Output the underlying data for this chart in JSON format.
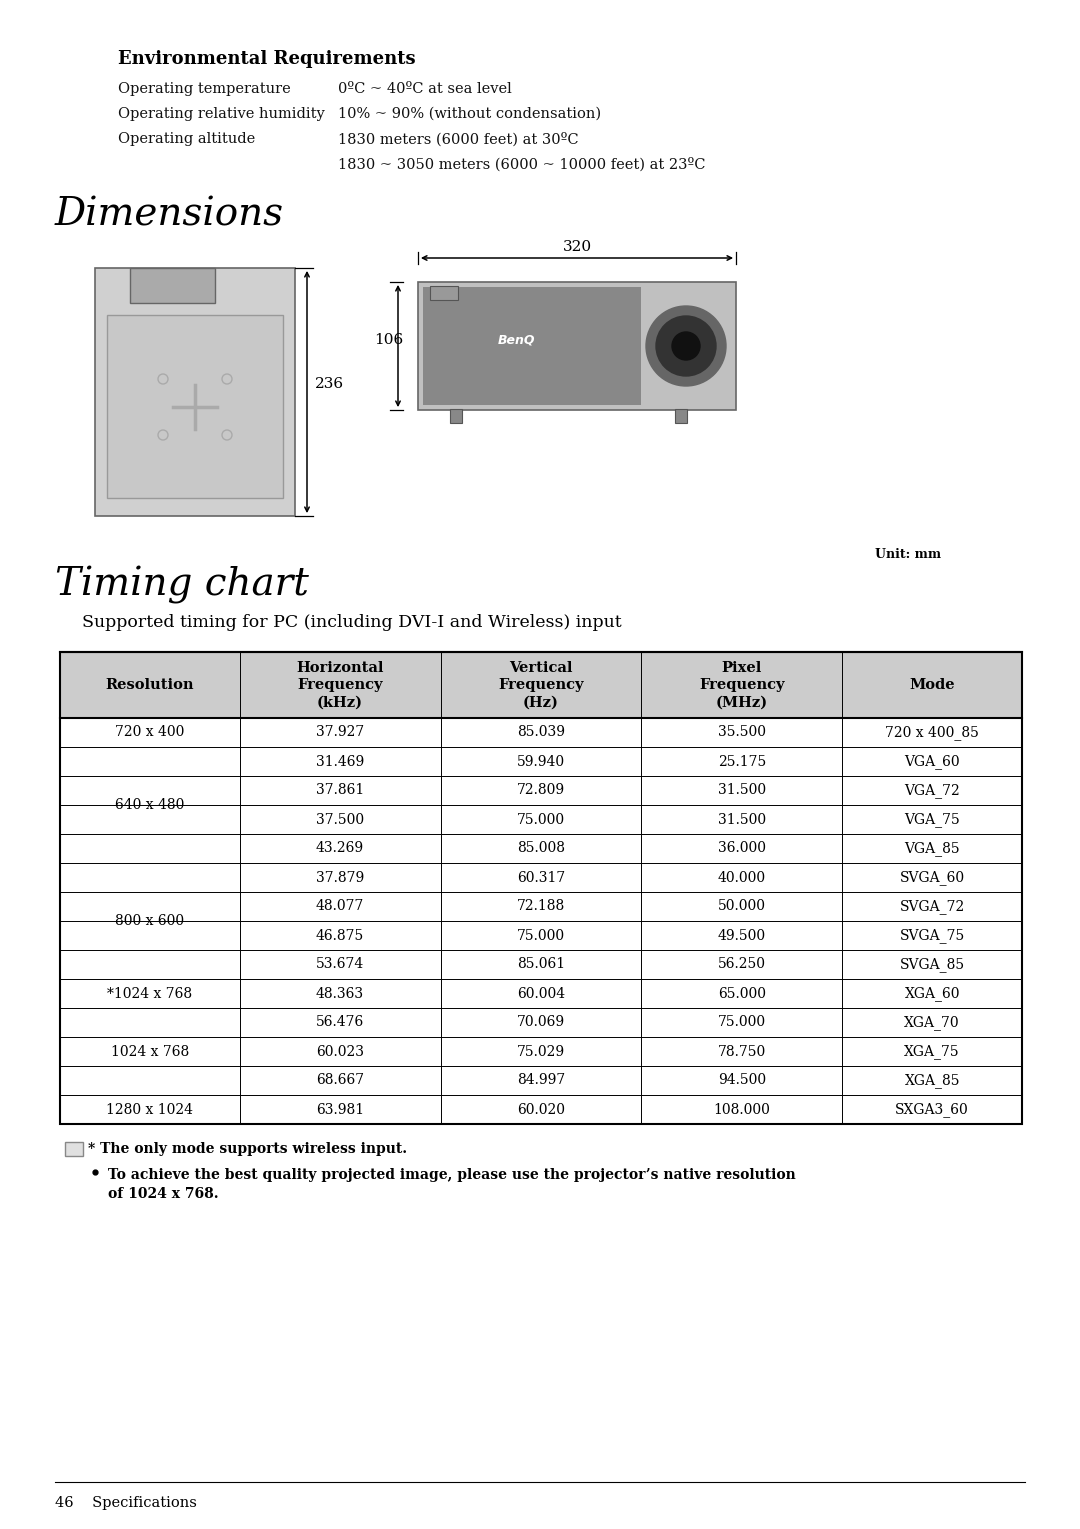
{
  "bg_color": "#ffffff",
  "env_title": "Environmental Requirements",
  "env_rows": [
    [
      "Operating temperature",
      "0ºC ~ 40ºC at sea level"
    ],
    [
      "Operating relative humidity",
      "10% ~ 90% (without condensation)"
    ],
    [
      "Operating altitude",
      "1830 meters (6000 feet) at 30ºC"
    ],
    [
      "",
      "1830 ~ 3050 meters (6000 ~ 10000 feet) at 23ºC"
    ]
  ],
  "dimensions_title": "Dimensions",
  "unit_label": "Unit: mm",
  "timing_title": "Timing chart",
  "timing_subtitle": "Supported timing for PC (including DVI-I and Wireless) input",
  "table_headers": [
    "Resolution",
    "Horizontal\nFrequency\n(kHz)",
    "Vertical\nFrequency\n(Hz)",
    "Pixel\nFrequency\n(MHz)",
    "Mode"
  ],
  "table_data": [
    [
      "720 x 400",
      "37.927",
      "85.039",
      "35.500",
      "720 x 400_85"
    ],
    [
      "",
      "31.469",
      "59.940",
      "25.175",
      "VGA_60"
    ],
    [
      "640 x 480",
      "37.861",
      "72.809",
      "31.500",
      "VGA_72"
    ],
    [
      "",
      "37.500",
      "75.000",
      "31.500",
      "VGA_75"
    ],
    [
      "",
      "43.269",
      "85.008",
      "36.000",
      "VGA_85"
    ],
    [
      "",
      "37.879",
      "60.317",
      "40.000",
      "SVGA_60"
    ],
    [
      "800 x 600",
      "48.077",
      "72.188",
      "50.000",
      "SVGA_72"
    ],
    [
      "",
      "46.875",
      "75.000",
      "49.500",
      "SVGA_75"
    ],
    [
      "",
      "53.674",
      "85.061",
      "56.250",
      "SVGA_85"
    ],
    [
      "*1024 x 768",
      "48.363",
      "60.004",
      "65.000",
      "XGA_60"
    ],
    [
      "",
      "56.476",
      "70.069",
      "75.000",
      "XGA_70"
    ],
    [
      "1024 x 768",
      "60.023",
      "75.029",
      "78.750",
      "XGA_75"
    ],
    [
      "",
      "68.667",
      "84.997",
      "94.500",
      "XGA_85"
    ],
    [
      "1280 x 1024",
      "63.981",
      "60.020",
      "108.000",
      "SXGA3_60"
    ]
  ],
  "res_groups": [
    [
      "720 x 400",
      0,
      0
    ],
    [
      "640 x 480",
      1,
      4
    ],
    [
      "800 x 600",
      5,
      8
    ],
    [
      "*1024 x 768",
      9,
      9
    ],
    [
      "1024 x 768",
      10,
      12
    ],
    [
      "1280 x 1024",
      13,
      13
    ]
  ],
  "note1": "* The only mode supports wireless input.",
  "note2": "To achieve the best quality projected image, please use the projector’s native resolution\nof 1024 x 768.",
  "footer": "46    Specifications"
}
